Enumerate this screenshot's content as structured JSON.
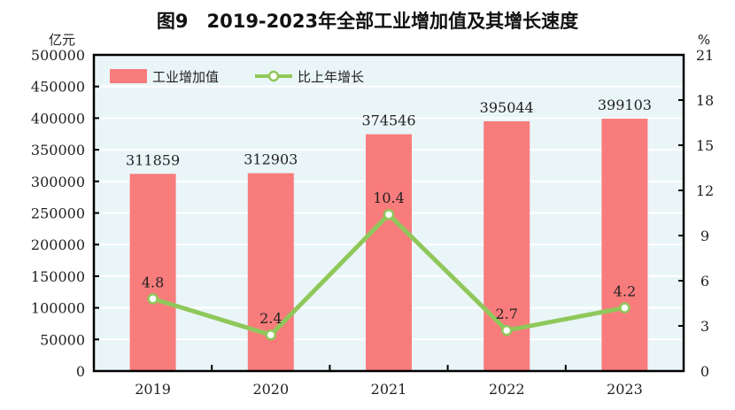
{
  "chart_data": {
    "type": "bar+line",
    "title": "图9　2019-2023年全部工业增加值及其增长速度",
    "categories": [
      "2019",
      "2020",
      "2021",
      "2022",
      "2023"
    ],
    "series": [
      {
        "name": "工业增加值",
        "type": "bar",
        "axis": "left",
        "values": [
          311859,
          312903,
          374546,
          395044,
          399103
        ],
        "color": "#f87c7c"
      },
      {
        "name": "比上年增长",
        "type": "line",
        "axis": "right",
        "values": [
          4.8,
          2.4,
          10.4,
          2.7,
          4.2
        ],
        "color": "#8fc85a"
      }
    ],
    "data_labels_bar": [
      "311859",
      "312903",
      "374546",
      "395044",
      "399103"
    ],
    "data_labels_line": [
      "4.8",
      "2.4",
      "10.4",
      "2.7",
      "4.2"
    ],
    "y_left": {
      "label": "亿元",
      "range": [
        0,
        500000
      ],
      "ticks": [
        0,
        50000,
        100000,
        150000,
        200000,
        250000,
        300000,
        350000,
        400000,
        450000,
        500000
      ]
    },
    "y_right": {
      "label": "%",
      "range": [
        0,
        21
      ],
      "ticks": [
        0,
        3,
        6,
        9,
        12,
        15,
        18,
        21
      ]
    },
    "grid": true,
    "legend_position": "top-left",
    "background_color": "#eaf5f8"
  }
}
